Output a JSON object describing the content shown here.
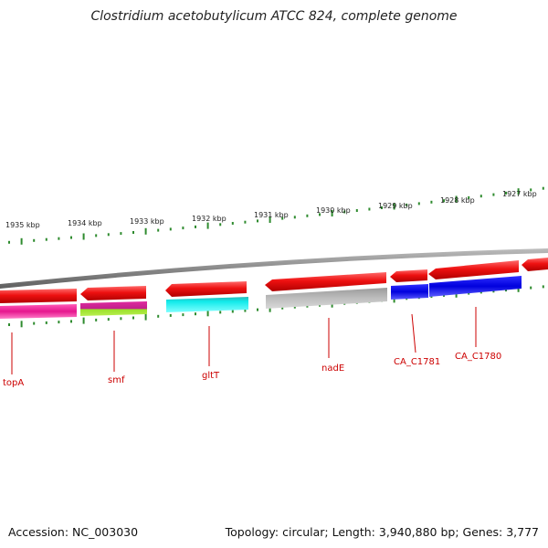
{
  "title": "Clostridium acetobutylicum ATCC 824, complete genome",
  "footer": {
    "accession": "Accession: NC_003030",
    "summary": "Topology: circular; Length: 3,940,880 bp; Genes: 3,777"
  },
  "colors": {
    "backbone": "#8a8a8a",
    "tick": "#2e8b2e",
    "cds": "#ee1111",
    "label": "#cc0000"
  },
  "kbp_labels": [
    "1935 kbp",
    "1934 kbp",
    "1933 kbp",
    "1932 kbp",
    "1931 kbp",
    "1930 kbp",
    "1929 kbp",
    "1928 kbp",
    "1927 kbp"
  ],
  "gene_labels": [
    "topA",
    "smf",
    "gltT",
    "nadE",
    "CA_C1781",
    "CA_C1780"
  ]
}
